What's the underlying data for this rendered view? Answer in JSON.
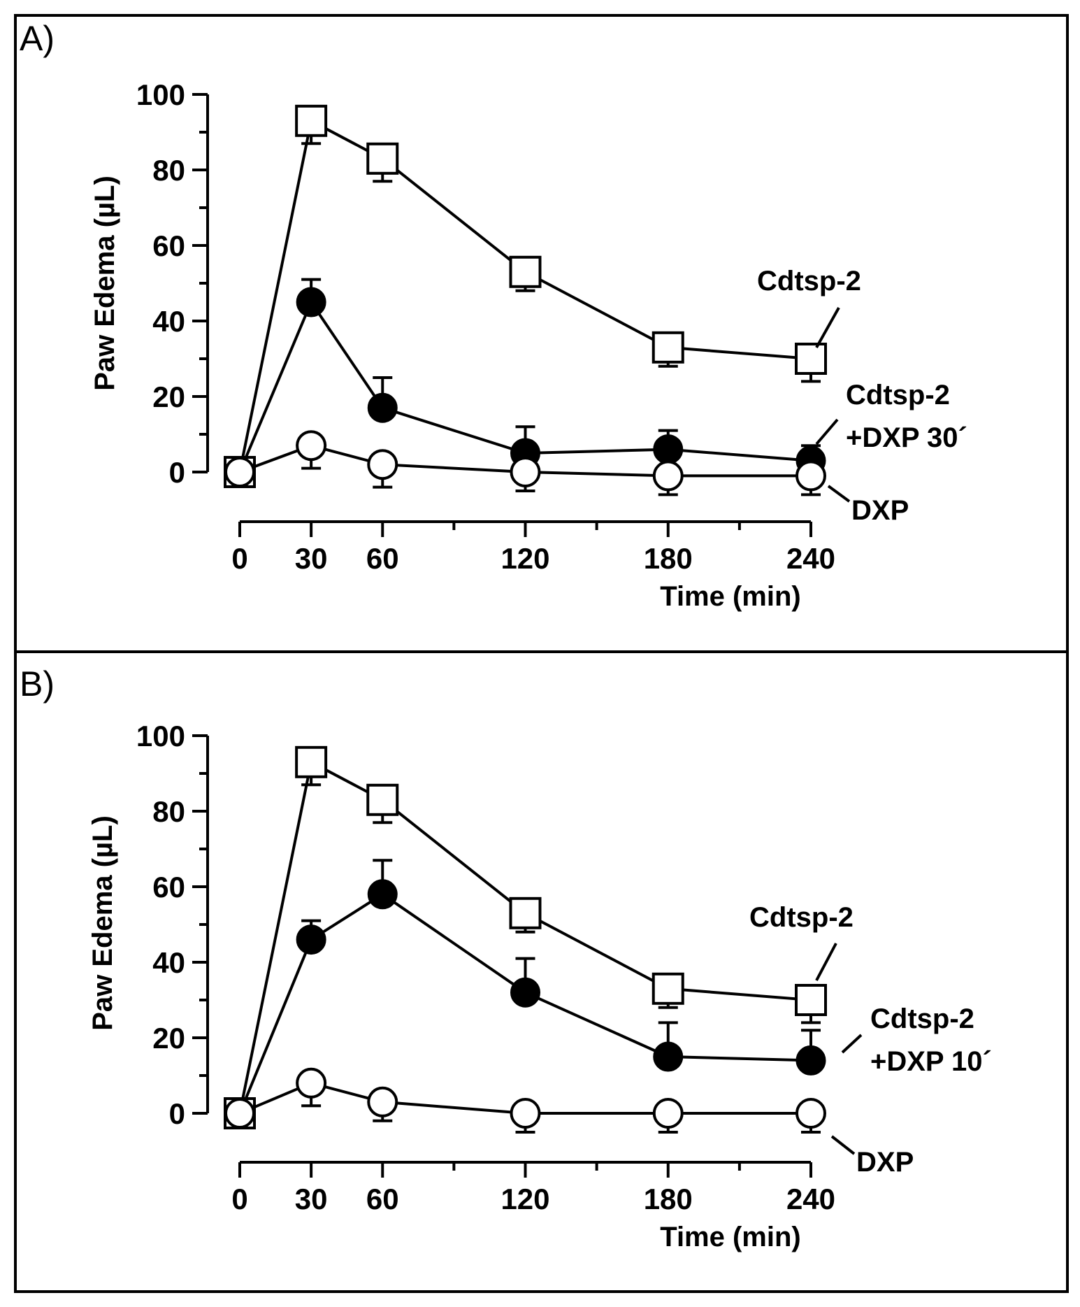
{
  "chart_data": [
    {
      "type": "line",
      "panel_label": "A)",
      "xlabel": "Time (min)",
      "ylabel": "Paw Edema (µL)",
      "x": [
        0,
        30,
        60,
        120,
        180,
        240
      ],
      "x_tick_labels": [
        "0",
        "30",
        "60",
        "120",
        "180",
        "240"
      ],
      "xlim": [
        0,
        240
      ],
      "ylim": [
        0,
        100
      ],
      "y_tick_labels": [
        "0",
        "20",
        "40",
        "60",
        "80",
        "100"
      ],
      "y_ticks": [
        0,
        20,
        40,
        60,
        80,
        100
      ],
      "series": [
        {
          "name": "Cdtsp-2",
          "label_lines": [
            "Cdtsp-2"
          ],
          "marker": "open-square",
          "values": [
            0,
            93,
            83,
            53,
            33,
            30
          ],
          "error_low": [
            0,
            6,
            6,
            5,
            5,
            6
          ]
        },
        {
          "name": "Cdtsp-2 +DXP 30´",
          "label_lines": [
            "Cdtsp-2",
            "+DXP 30´"
          ],
          "marker": "filled-circle",
          "values": [
            0,
            45,
            17,
            5,
            6,
            3
          ],
          "error_high": [
            0,
            6,
            8,
            7,
            5,
            4
          ]
        },
        {
          "name": "DXP",
          "label_lines": [
            "DXP"
          ],
          "marker": "open-circle",
          "values": [
            0,
            7,
            2,
            0,
            -1,
            -1
          ],
          "error_low": [
            0,
            6,
            6,
            5,
            5,
            5
          ]
        }
      ]
    },
    {
      "type": "line",
      "panel_label": "B)",
      "xlabel": "Time (min)",
      "ylabel": "Paw Edema (µL)",
      "x": [
        0,
        30,
        60,
        120,
        180,
        240
      ],
      "x_tick_labels": [
        "0",
        "30",
        "60",
        "120",
        "180",
        "240"
      ],
      "xlim": [
        0,
        240
      ],
      "ylim": [
        0,
        100
      ],
      "y_tick_labels": [
        "0",
        "20",
        "40",
        "60",
        "80",
        "100"
      ],
      "y_ticks": [
        0,
        20,
        40,
        60,
        80,
        100
      ],
      "series": [
        {
          "name": "Cdtsp-2",
          "label_lines": [
            "Cdtsp-2"
          ],
          "marker": "open-square",
          "values": [
            0,
            93,
            83,
            53,
            33,
            30
          ],
          "error_low": [
            0,
            6,
            6,
            5,
            5,
            6
          ]
        },
        {
          "name": "Cdtsp-2 +DXP 10´",
          "label_lines": [
            "Cdtsp-2",
            "+DXP 10´"
          ],
          "marker": "filled-circle",
          "values": [
            0,
            46,
            58,
            32,
            15,
            14
          ],
          "error_high": [
            0,
            5,
            9,
            9,
            9,
            8
          ]
        },
        {
          "name": "DXP",
          "label_lines": [
            "DXP"
          ],
          "marker": "open-circle",
          "values": [
            0,
            8,
            3,
            0,
            0,
            0
          ],
          "error_low": [
            0,
            6,
            5,
            5,
            5,
            5
          ]
        }
      ]
    }
  ]
}
